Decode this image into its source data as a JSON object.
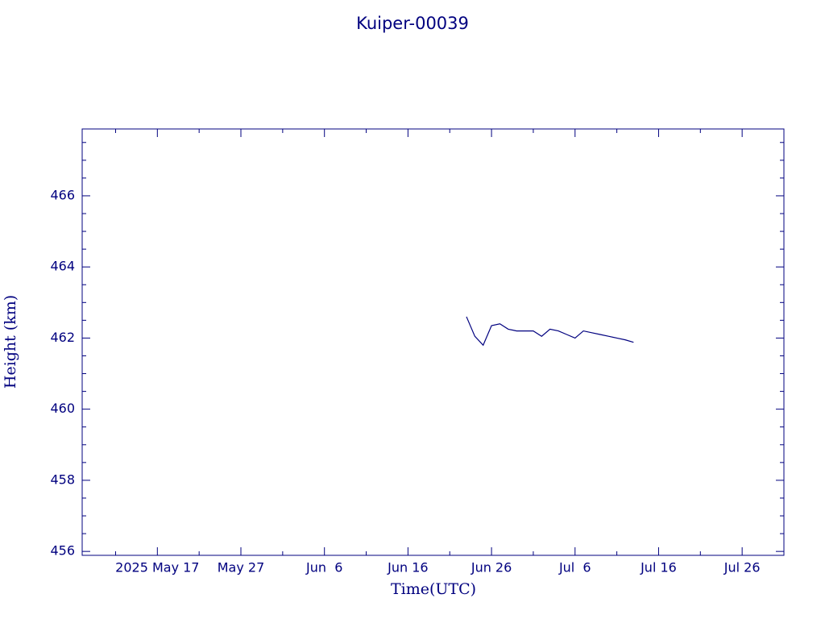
{
  "chart_data": {
    "type": "line",
    "title": "Kuiper-00039",
    "xlabel": "Time(UTC)",
    "ylabel": "Height (km)",
    "color": "#00007f",
    "xlim": [
      "2025-05-08",
      "2025-07-31"
    ],
    "ylim": [
      455.89,
      467.88
    ],
    "xticks": [
      {
        "value": "2025-05-17",
        "label": "2025 May 17"
      },
      {
        "value": "2025-05-27",
        "label": "May 27"
      },
      {
        "value": "2025-06-06",
        "label": "Jun  6"
      },
      {
        "value": "2025-06-16",
        "label": "Jun 16"
      },
      {
        "value": "2025-06-26",
        "label": "Jun 26"
      },
      {
        "value": "2025-07-06",
        "label": "Jul  6"
      },
      {
        "value": "2025-07-16",
        "label": "Jul 16"
      },
      {
        "value": "2025-07-26",
        "label": "Jul 26"
      }
    ],
    "xticks_minor": [
      "2025-05-12",
      "2025-05-22",
      "2025-06-01",
      "2025-06-11",
      "2025-06-21",
      "2025-07-01",
      "2025-07-11",
      "2025-07-21"
    ],
    "yticks": [
      456,
      458,
      460,
      462,
      464,
      466
    ],
    "yticks_minor": [
      456.5,
      457,
      457.5,
      458.5,
      459,
      459.5,
      460.5,
      461,
      461.5,
      462.5,
      463,
      463.5,
      464.5,
      465,
      465.5,
      466.5,
      467,
      467.5
    ],
    "x": [
      "2025-06-23",
      "2025-06-24",
      "2025-06-25",
      "2025-06-26",
      "2025-06-27",
      "2025-06-28",
      "2025-06-29",
      "2025-06-30",
      "2025-07-01",
      "2025-07-02",
      "2025-07-03",
      "2025-07-04",
      "2025-07-05",
      "2025-07-06",
      "2025-07-07",
      "2025-07-08",
      "2025-07-09",
      "2025-07-10",
      "2025-07-11",
      "2025-07-12",
      "2025-07-13"
    ],
    "values": [
      462.6,
      462.05,
      461.8,
      462.35,
      462.4,
      462.25,
      462.2,
      462.2,
      462.2,
      462.05,
      462.25,
      462.2,
      462.1,
      462.0,
      462.2,
      462.15,
      462.1,
      462.05,
      462.0,
      461.95,
      461.88
    ]
  }
}
